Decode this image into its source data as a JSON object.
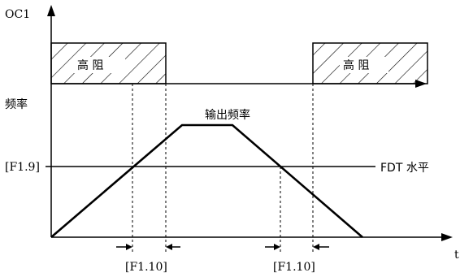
{
  "labels": {
    "oc1": "OC1",
    "freq_axis": "频率",
    "high_z_left": "高 阻",
    "high_z_right": "高 阻",
    "output_freq": "输出频率",
    "f19": "[F1.9]",
    "fdt_level": "FDT 水平",
    "f110_left": "[F1.10]",
    "f110_right": "[F1.10]",
    "t": "t"
  }
}
